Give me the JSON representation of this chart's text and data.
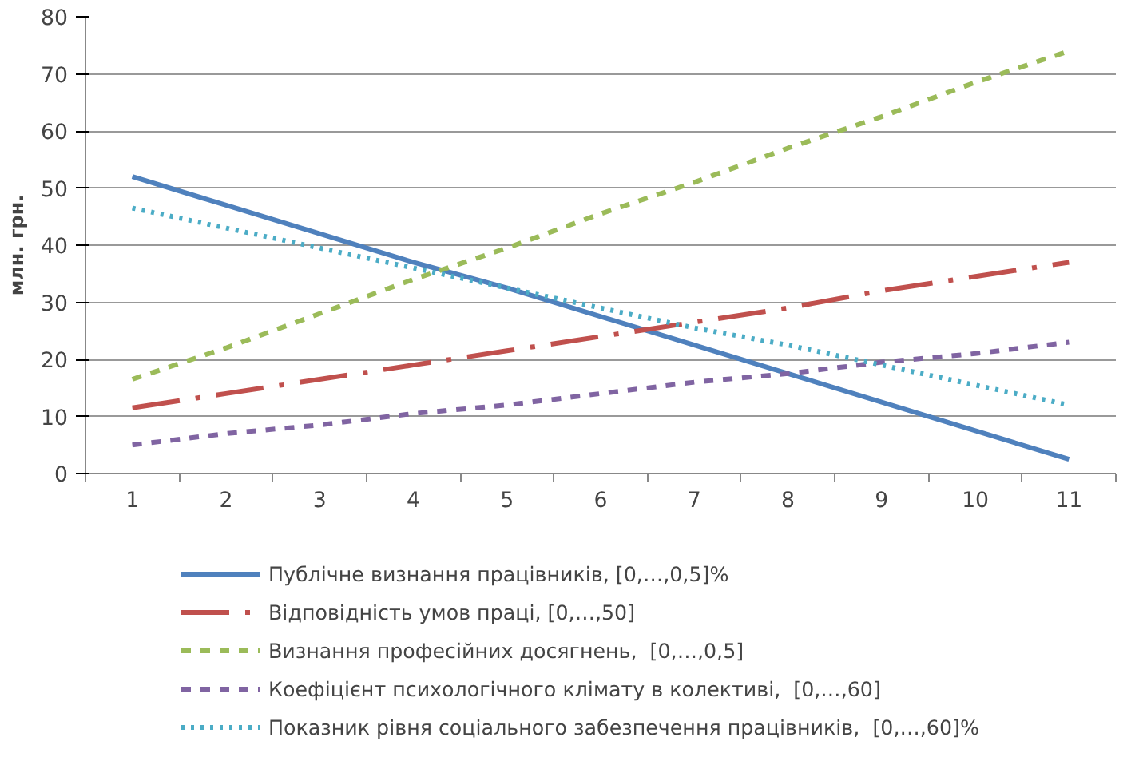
{
  "chart_data": {
    "type": "line",
    "ylabel": "млн. грн.",
    "categories": [
      "1",
      "2",
      "3",
      "4",
      "5",
      "6",
      "7",
      "8",
      "9",
      "10",
      "11"
    ],
    "series": [
      {
        "name": "Публічне визнання працівників, [0,…,0,5]%",
        "color": "#4f81bd",
        "line_style": "solid",
        "values": [
          52,
          47,
          42,
          37,
          32.5,
          27.5,
          22.5,
          17.5,
          12.5,
          7.5,
          2.5
        ]
      },
      {
        "name": "Відповідність умов праці, [0,…,50]",
        "color": "#c0504d",
        "line_style": "dashdot",
        "values": [
          11.5,
          14,
          16.5,
          19,
          21.5,
          24,
          26.5,
          29,
          32,
          34.5,
          37
        ]
      },
      {
        "name": "Визнання професійних досягнень,  [0,…,0,5]",
        "color": "#9bbb59",
        "line_style": "dashed",
        "values": [
          16.5,
          22,
          28,
          34,
          39.5,
          45.5,
          51,
          57,
          62.5,
          68.5,
          74
        ]
      },
      {
        "name": "Коефіцієнт психологічного клімату в колективі,  [0,…,60]",
        "color": "#8064a2",
        "line_style": "dashed",
        "values": [
          5,
          7,
          8.5,
          10.5,
          12,
          14,
          16,
          17.5,
          19.5,
          21,
          23
        ]
      },
      {
        "name": "Показник рівня соціального забезпечення працівників,  [0,…,60]%",
        "color": "#4bacc6",
        "line_style": "dotted",
        "values": [
          46.5,
          43,
          39.5,
          36,
          32.5,
          29,
          25.5,
          22.5,
          19,
          15.5,
          12
        ]
      }
    ],
    "ylim": [
      0,
      80
    ],
    "yticks": [
      0,
      10,
      20,
      30,
      40,
      50,
      60,
      70,
      80
    ],
    "grid": "y",
    "legend": "bottom",
    "marker": "none"
  }
}
